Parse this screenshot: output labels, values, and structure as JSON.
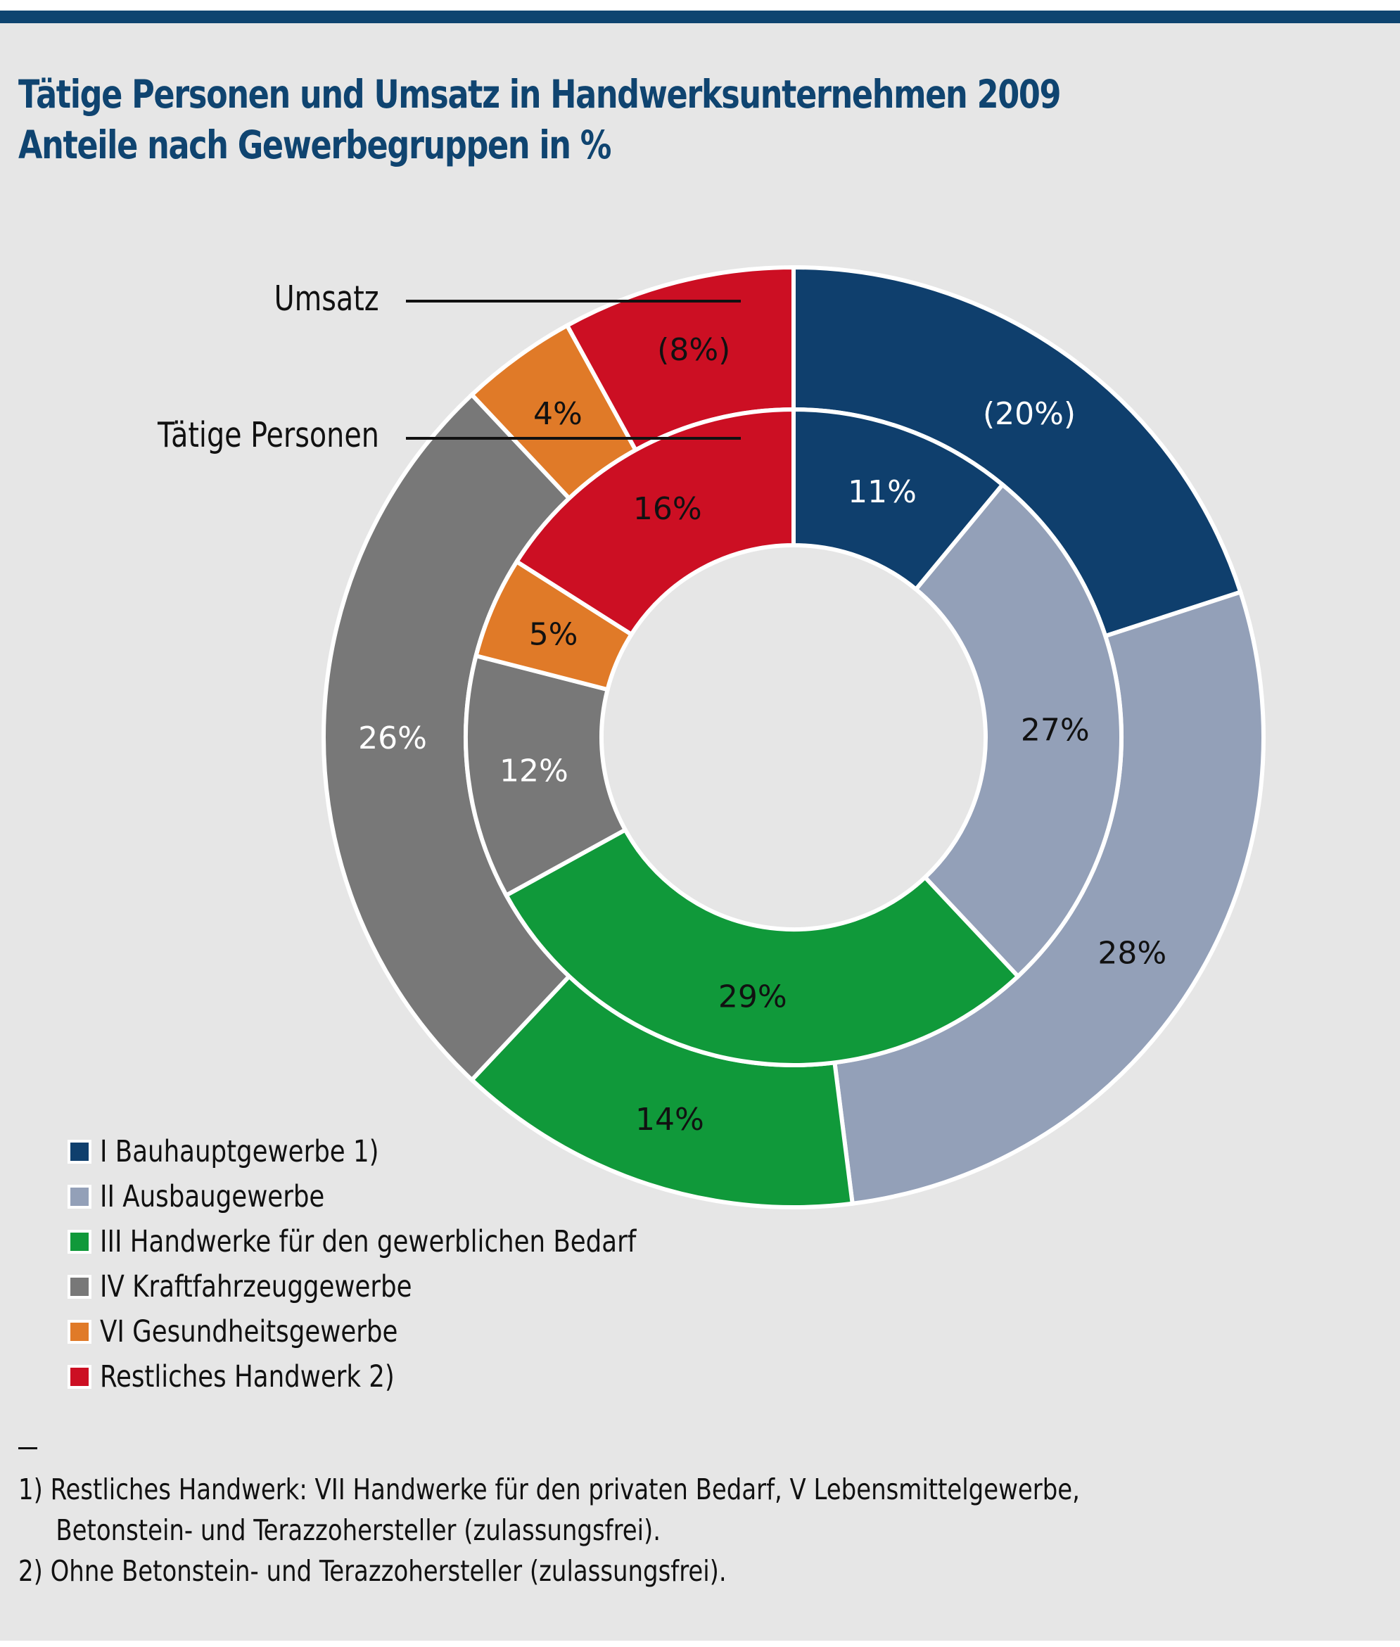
{
  "title": {
    "line1": "Tätige Personen und Umsatz in Handwerksunternehmen 2009",
    "line2": "Anteile nach Gewerbegruppen in %"
  },
  "ring_labels": {
    "outer": "Umsatz",
    "inner": "Tätige Personen"
  },
  "chart_data": {
    "type": "pie",
    "subtype": "double-donut",
    "title": "Tätige Personen und Umsatz in Handwerksunternehmen 2009 — Anteile nach Gewerbegruppen in %",
    "unit": "%",
    "categories": [
      "I Bauhauptgewerbe 1)",
      "II Ausbaugewerbe",
      "III Handwerke für den gewerblichen Bedarf",
      "IV Kraftfahrzeuggewerbe",
      "VI Gesundheitsgewerbe",
      "Restliches Handwerk 2)"
    ],
    "colors": [
      "#0f3f6d",
      "#93a0b8",
      "#10993a",
      "#787878",
      "#e07a28",
      "#cc0f23"
    ],
    "label_colors": [
      "#ffffff",
      "#111111",
      "#111111",
      "#ffffff",
      "#111111",
      "#111111"
    ],
    "series": [
      {
        "name": "Umsatz",
        "ring": "outer",
        "values": [
          20,
          28,
          14,
          26,
          4,
          8
        ],
        "labels": [
          "(20%)",
          "28%",
          "14%",
          "26%",
          "4%",
          "(8%)"
        ]
      },
      {
        "name": "Tätige Personen",
        "ring": "inner",
        "values": [
          11,
          27,
          29,
          12,
          5,
          16
        ],
        "labels": [
          "11%",
          "27%",
          "29%",
          "12%",
          "5%",
          "16%"
        ]
      }
    ],
    "start_angle": "12 o'clock",
    "direction": "clockwise",
    "legend_position": "bottom-left"
  },
  "footnotes": {
    "f1_line1": "1) Restliches Handwerk: VII Handwerke für den privaten Bedarf, V Lebensmittelgewerbe,",
    "f1_line2": "Betonstein- und Terazzohersteller (zulassungsfrei).",
    "f2": "2) Ohne Betonstein- und Terazzohersteller (zulassungsfrei)."
  }
}
